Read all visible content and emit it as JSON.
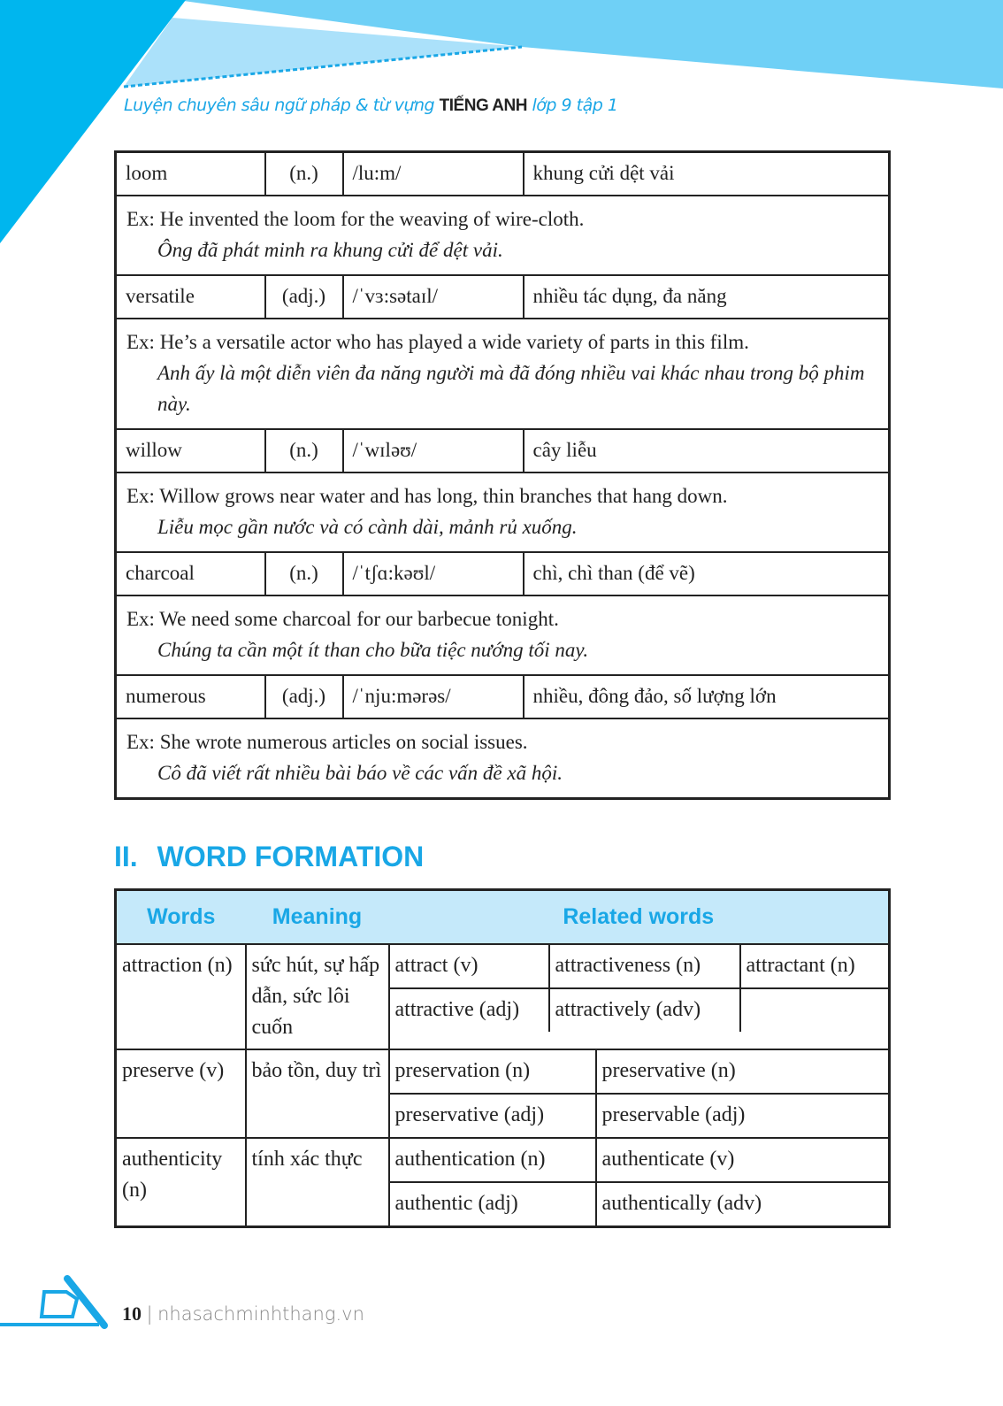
{
  "header": {
    "running_title_pre": "Luyện chuyên sâu ngữ pháp & từ vựng",
    "running_title_bold": "TIẾNG ANH",
    "running_title_post": "lớp 9 tập 1",
    "accent": "#00B6EE"
  },
  "vocabulary": [
    {
      "word": "loom",
      "pos": "(n.)",
      "ipa": "/lu:m/",
      "meaning": "khung cửi dệt vải",
      "example": "Ex: He invented the loom for the weaving of wire-cloth.",
      "translation": "Ông đã phát minh ra khung cửi để dệt vải."
    },
    {
      "word": "versatile",
      "pos": "(adj.)",
      "ipa": "/ˈvɜ:sətaɪl/",
      "meaning": "nhiều tác dụng, đa năng",
      "example": "Ex: He’s a versatile actor who has played a wide variety of parts in this film.",
      "translation": "Anh ấy là một diễn viên đa năng người mà đã đóng nhiều vai khác nhau trong bộ phim này."
    },
    {
      "word": "willow",
      "pos": "(n.)",
      "ipa": "/ˈwɪləʊ/",
      "meaning": "cây liễu",
      "example": "Ex: Willow grows near water and has long, thin branches that hang down.",
      "translation": "Liễu mọc gần nước và có cành dài, mảnh rủ xuống."
    },
    {
      "word": "charcoal",
      "pos": "(n.)",
      "ipa": "/ˈtʃɑ:kəʊl/",
      "meaning": "chì, chì than (để vẽ)",
      "example": "Ex: We need some charcoal for our barbecue tonight.",
      "translation": "Chúng ta cần một ít than cho bữa tiệc nướng tối nay."
    },
    {
      "word": "numerous",
      "pos": "(adj.)",
      "ipa": "/ˈnju:mərəs/",
      "meaning": "nhiều, đông đảo, số lượng lớn",
      "example": "Ex: She wrote numerous articles on social issues.",
      "translation": "Cô đã viết rất nhiều bài báo về các vấn đề xã hội."
    }
  ],
  "section": {
    "number": "II.",
    "title": "WORD FORMATION"
  },
  "word_formation": {
    "headers": [
      "Words",
      "Meaning",
      "Related words"
    ],
    "rows": [
      {
        "word": "attraction (n)",
        "meaning": "sức hút, sự hấp dẫn, sức lôi cuốn",
        "related": [
          [
            "attract (v)",
            "attractiveness (n)",
            "attractant (n)"
          ],
          [
            "attractive (adj)",
            "attractively (adv)",
            ""
          ]
        ]
      },
      {
        "word": "preserve (v)",
        "meaning": "bảo tồn, duy trì",
        "related": [
          [
            "preservation (n)",
            "preservative (n)"
          ],
          [
            "preservative (adj)",
            "preservable (adj)"
          ]
        ]
      },
      {
        "word": "authenticity (n)",
        "meaning": "tính xác thực",
        "related": [
          [
            "authentication (n)",
            "authenticate (v)"
          ],
          [
            "authentic (adj)",
            "authentically (adv)"
          ]
        ]
      }
    ]
  },
  "footer": {
    "page": "10",
    "separator": "|",
    "site": "nhasachminhthang.vn"
  }
}
